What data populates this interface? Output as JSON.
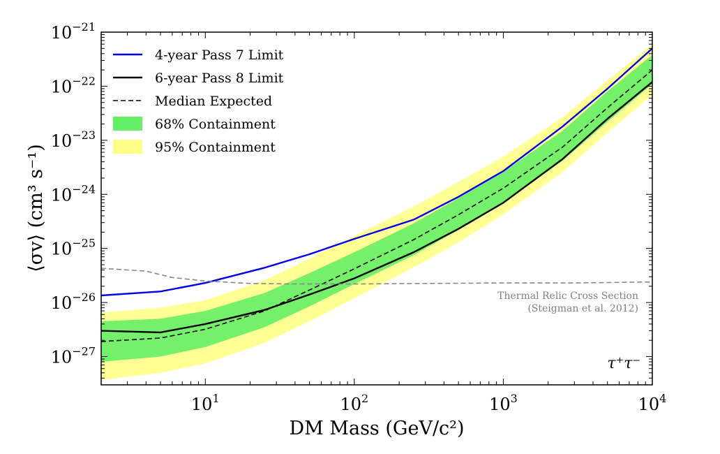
{
  "chart_data": {
    "type": "line",
    "x_scale": "log",
    "y_scale": "log",
    "xlim": [
      2,
      10000
    ],
    "ylim": [
      3e-28,
      1e-21
    ],
    "xlabel": "DM Mass (GeV/c²)",
    "ylabel": "⟨σv⟩ (cm³ s⁻¹)",
    "x_ticks": [
      {
        "value": 10,
        "base": "10",
        "exp": "1"
      },
      {
        "value": 100,
        "base": "10",
        "exp": "2"
      },
      {
        "value": 1000,
        "base": "10",
        "exp": "3"
      },
      {
        "value": 10000,
        "base": "10",
        "exp": "4"
      }
    ],
    "y_ticks": [
      {
        "value": 1e-27,
        "base": "10",
        "exp": "−27"
      },
      {
        "value": 1e-26,
        "base": "10",
        "exp": "−26"
      },
      {
        "value": 1e-25,
        "base": "10",
        "exp": "−25"
      },
      {
        "value": 1e-24,
        "base": "10",
        "exp": "−24"
      },
      {
        "value": 1e-23,
        "base": "10",
        "exp": "−23"
      },
      {
        "value": 1e-22,
        "base": "10",
        "exp": "−22"
      },
      {
        "value": 1e-21,
        "base": "10",
        "exp": "−21"
      }
    ],
    "grid": false,
    "legend_position": "top-left",
    "series": [
      {
        "name": "4-year Pass 7 Limit",
        "style": "line",
        "color": "#0000ee",
        "x": [
          2,
          5,
          10,
          25,
          50,
          100,
          250,
          500,
          1000,
          2500,
          5000,
          10000
        ],
        "y": [
          1.35e-26,
          1.6e-26,
          2.3e-26,
          4.4e-26,
          7.8e-26,
          1.5e-25,
          3.4e-25,
          9e-25,
          2.7e-24,
          1.8e-23,
          9e-23,
          5e-22
        ]
      },
      {
        "name": "6-year Pass 8 Limit",
        "style": "line",
        "color": "#000000",
        "x": [
          2,
          5,
          10,
          25,
          50,
          100,
          250,
          500,
          1000,
          2500,
          5000,
          10000
        ],
        "y": [
          3e-27,
          2.8e-27,
          4e-27,
          7.3e-27,
          1.4e-26,
          2.8e-26,
          8.5e-26,
          2.3e-25,
          7e-25,
          4.5e-24,
          2.5e-23,
          1.2e-22
        ]
      },
      {
        "name": "Median Expected",
        "style": "dashed",
        "color": "#000000",
        "x": [
          2,
          5,
          10,
          25,
          50,
          100,
          250,
          500,
          1000,
          2500,
          5000,
          10000
        ],
        "y": [
          1.9e-27,
          2.2e-27,
          3.2e-27,
          7e-27,
          1.7e-26,
          4.2e-26,
          1.45e-25,
          4.2e-25,
          1.3e-24,
          7.5e-24,
          4e-23,
          2e-22
        ]
      },
      {
        "name": "68% Containment",
        "style": "band",
        "color": "#66ee66",
        "x": [
          2,
          5,
          10,
          25,
          50,
          100,
          250,
          500,
          1000,
          2500,
          5000,
          10000
        ],
        "y_low": [
          8e-28,
          1e-27,
          1.5e-27,
          3.5e-27,
          8.5e-27,
          2.2e-26,
          7.5e-26,
          2.2e-25,
          7e-25,
          4.2e-24,
          2.2e-23,
          1.1e-22
        ],
        "y_high": [
          4.5e-27,
          5e-27,
          7e-27,
          1.5e-26,
          3.5e-26,
          8.5e-26,
          2.9e-25,
          8.5e-25,
          2.6e-24,
          1.5e-23,
          8e-23,
          3.8e-22
        ]
      },
      {
        "name": "95% Containment",
        "style": "band",
        "color": "#ffff88",
        "x": [
          2,
          5,
          10,
          25,
          50,
          100,
          250,
          500,
          1000,
          2500,
          5000,
          10000
        ],
        "y_low": [
          3.7e-28,
          5e-28,
          7.5e-28,
          1.8e-27,
          4.5e-27,
          1.2e-26,
          4.5e-26,
          1.3e-25,
          4.3e-25,
          2.6e-24,
          1.4e-23,
          7e-23
        ],
        "y_high": [
          6.5e-27,
          8e-27,
          1.1e-26,
          2.6e-26,
          6.5e-26,
          1.7e-25,
          6e-25,
          1.7e-24,
          5e-24,
          2.7e-23,
          1.3e-22,
          6e-22
        ]
      },
      {
        "name": "Thermal Relic Cross Section",
        "style": "dashed",
        "color": "#888888",
        "x": [
          2,
          4,
          6,
          10,
          20,
          40,
          100,
          300,
          1000,
          3000,
          10000
        ],
        "y": [
          4.3e-26,
          3.8e-26,
          2.9e-26,
          2.5e-26,
          2.25e-26,
          2.2e-26,
          2.2e-26,
          2.25e-26,
          2.3e-26,
          2.3e-26,
          2.4e-26
        ]
      }
    ],
    "annotations": {
      "relic_line1": "Thermal Relic Cross Section",
      "relic_line2": "(Steigman et al. 2012)",
      "channel": "τ⁺τ⁻"
    }
  }
}
